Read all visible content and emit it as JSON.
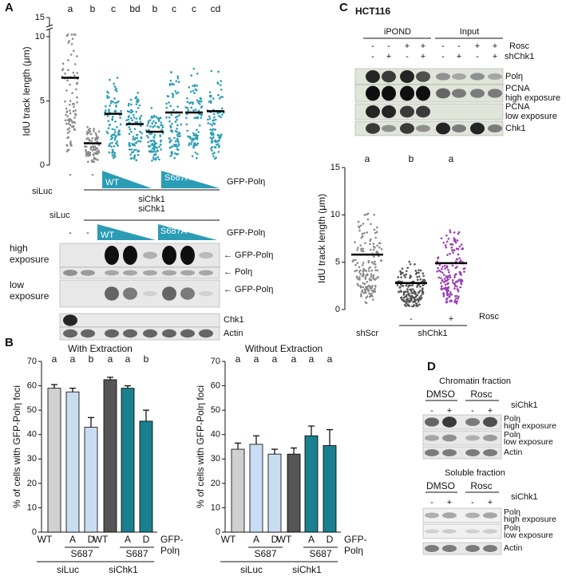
{
  "panel_labels": [
    "A",
    "B",
    "C",
    "D"
  ],
  "chart_data": [
    {
      "type": "strip",
      "y_label": "IdU track length (μm)",
      "categories": [
        "-",
        "-",
        null,
        null,
        null,
        null,
        null,
        null
      ],
      "values": [
        6.8,
        1.7,
        4.0,
        3.2,
        2.6,
        4.1,
        4.1,
        4.2
      ],
      "colors": [
        "#8a8a8a",
        "#8a8a8a",
        "#2a9db5",
        "#2a9db5",
        "#2a9db5",
        "#2a9db5",
        "#2a9db5",
        "#2a9db5"
      ],
      "annotations": [
        "a",
        "b",
        "c",
        "bd",
        "b",
        "c",
        "c",
        "cd"
      ],
      "ylim": [
        0,
        15
      ],
      "yticks": [
        0,
        5,
        10,
        15
      ]
    },
    {
      "type": "bar",
      "title": "With Extraction",
      "y_label": "% of cells with GFP-Polη foci",
      "categories": [
        "WT",
        "A",
        "D",
        "WT",
        "A",
        "D"
      ],
      "values": [
        59,
        57.5,
        43,
        62.5,
        59,
        45.5
      ],
      "errors": [
        1.5,
        1.5,
        4,
        1,
        1,
        4.5
      ],
      "colors": [
        "#d0d0d0",
        "#c9ddf2",
        "#c9ddf2",
        "#555555",
        "#1a7f8e",
        "#1a7f8e"
      ],
      "annotations": [
        "a",
        "a",
        "b",
        "a",
        "a",
        "b"
      ],
      "subgroup_labels": [
        "S687",
        "S687"
      ],
      "group_labels": [
        "siLuc",
        "siChk1"
      ],
      "x_label": [
        "GFP-",
        "Polη"
      ],
      "ylim": [
        0,
        70
      ],
      "yticks": [
        0,
        10,
        20,
        30,
        40,
        50,
        60,
        70
      ]
    },
    {
      "type": "bar",
      "title": "Without Extraction",
      "y_label": "% of cells with GFP-Polη foci",
      "categories": [
        "WT",
        "A",
        "D",
        "WT",
        "A",
        "D"
      ],
      "values": [
        34,
        36,
        32,
        32,
        39.5,
        35.5
      ],
      "errors": [
        2.5,
        3.5,
        2,
        2.5,
        4,
        6.5
      ],
      "colors": [
        "#d0d0d0",
        "#c9ddf2",
        "#c9ddf2",
        "#555555",
        "#1a7f8e",
        "#1a7f8e"
      ],
      "annotations": [
        "a",
        "a",
        "a",
        "a",
        "a",
        "a"
      ],
      "subgroup_labels": [
        "S687",
        "S687"
      ],
      "group_labels": [
        "siLuc",
        "siChk1"
      ],
      "x_label": [
        "GFP-",
        "Polη"
      ],
      "ylim": [
        0,
        70
      ],
      "yticks": [
        0,
        10,
        20,
        30,
        40,
        50,
        60,
        70
      ]
    },
    {
      "type": "strip",
      "y_label": "IdU track length (μm)",
      "categories": [
        null,
        "-",
        "+"
      ],
      "values": [
        5.8,
        2.8,
        4.9
      ],
      "colors": [
        "#8a8a8a",
        "#555555",
        "#9b3fb5"
      ],
      "annotations": [
        "a",
        "b",
        "a"
      ],
      "ylim": [
        0,
        15
      ],
      "yticks": [
        0,
        5,
        10,
        15
      ]
    }
  ],
  "panel_a": {
    "gfp": "GFP-Polη",
    "wt": "WT",
    "s687a": "S687A",
    "siluc": "siLuc",
    "sichk1": "siChk1",
    "blot_minus": [
      "-",
      "-"
    ],
    "blot_siluc": "siLuc",
    "blot_sichk1": "siChk1",
    "blot_wt": "WT",
    "blot_s687a": "S687A",
    "blot_gfp": "GFP-Polη",
    "high": [
      "high",
      "exposure"
    ],
    "low": [
      "low",
      "exposure"
    ],
    "bands": [
      "← GFP-Polη",
      "← Polη",
      "← GFP-Polη",
      "Chk1",
      "Actin"
    ]
  },
  "panel_c": {
    "cell_line": "HCT116",
    "ipond": "iPOND",
    "input": "Input",
    "rosc_label": "Rosc",
    "rosc": [
      "-",
      "-",
      "+",
      "+",
      "-",
      "-",
      "+",
      "+"
    ],
    "shchk1_label": "shChk1",
    "shchk1": [
      "-",
      "+",
      "-",
      "+",
      "-",
      "+",
      "-",
      "+"
    ],
    "bands": [
      [
        "Polη"
      ],
      [
        "PCNA",
        "high exposure"
      ],
      [
        "PCNA",
        "low exposure"
      ],
      [
        "Chk1"
      ]
    ],
    "plot_rosc": "Rosc",
    "shscr": "shScr",
    "plot_shchk1": "shChk1"
  },
  "panel_d": {
    "chromatin": "Chromatin fraction",
    "soluble": "Soluble fraction",
    "dmso": "DMSO",
    "rosc": "Rosc",
    "sichk1": "siChk1",
    "signs": [
      "-",
      "+",
      "-",
      "+"
    ],
    "bands": [
      [
        "Polη",
        "high exposure"
      ],
      [
        "Polη",
        "low exposure"
      ],
      [
        "Actin"
      ]
    ]
  }
}
